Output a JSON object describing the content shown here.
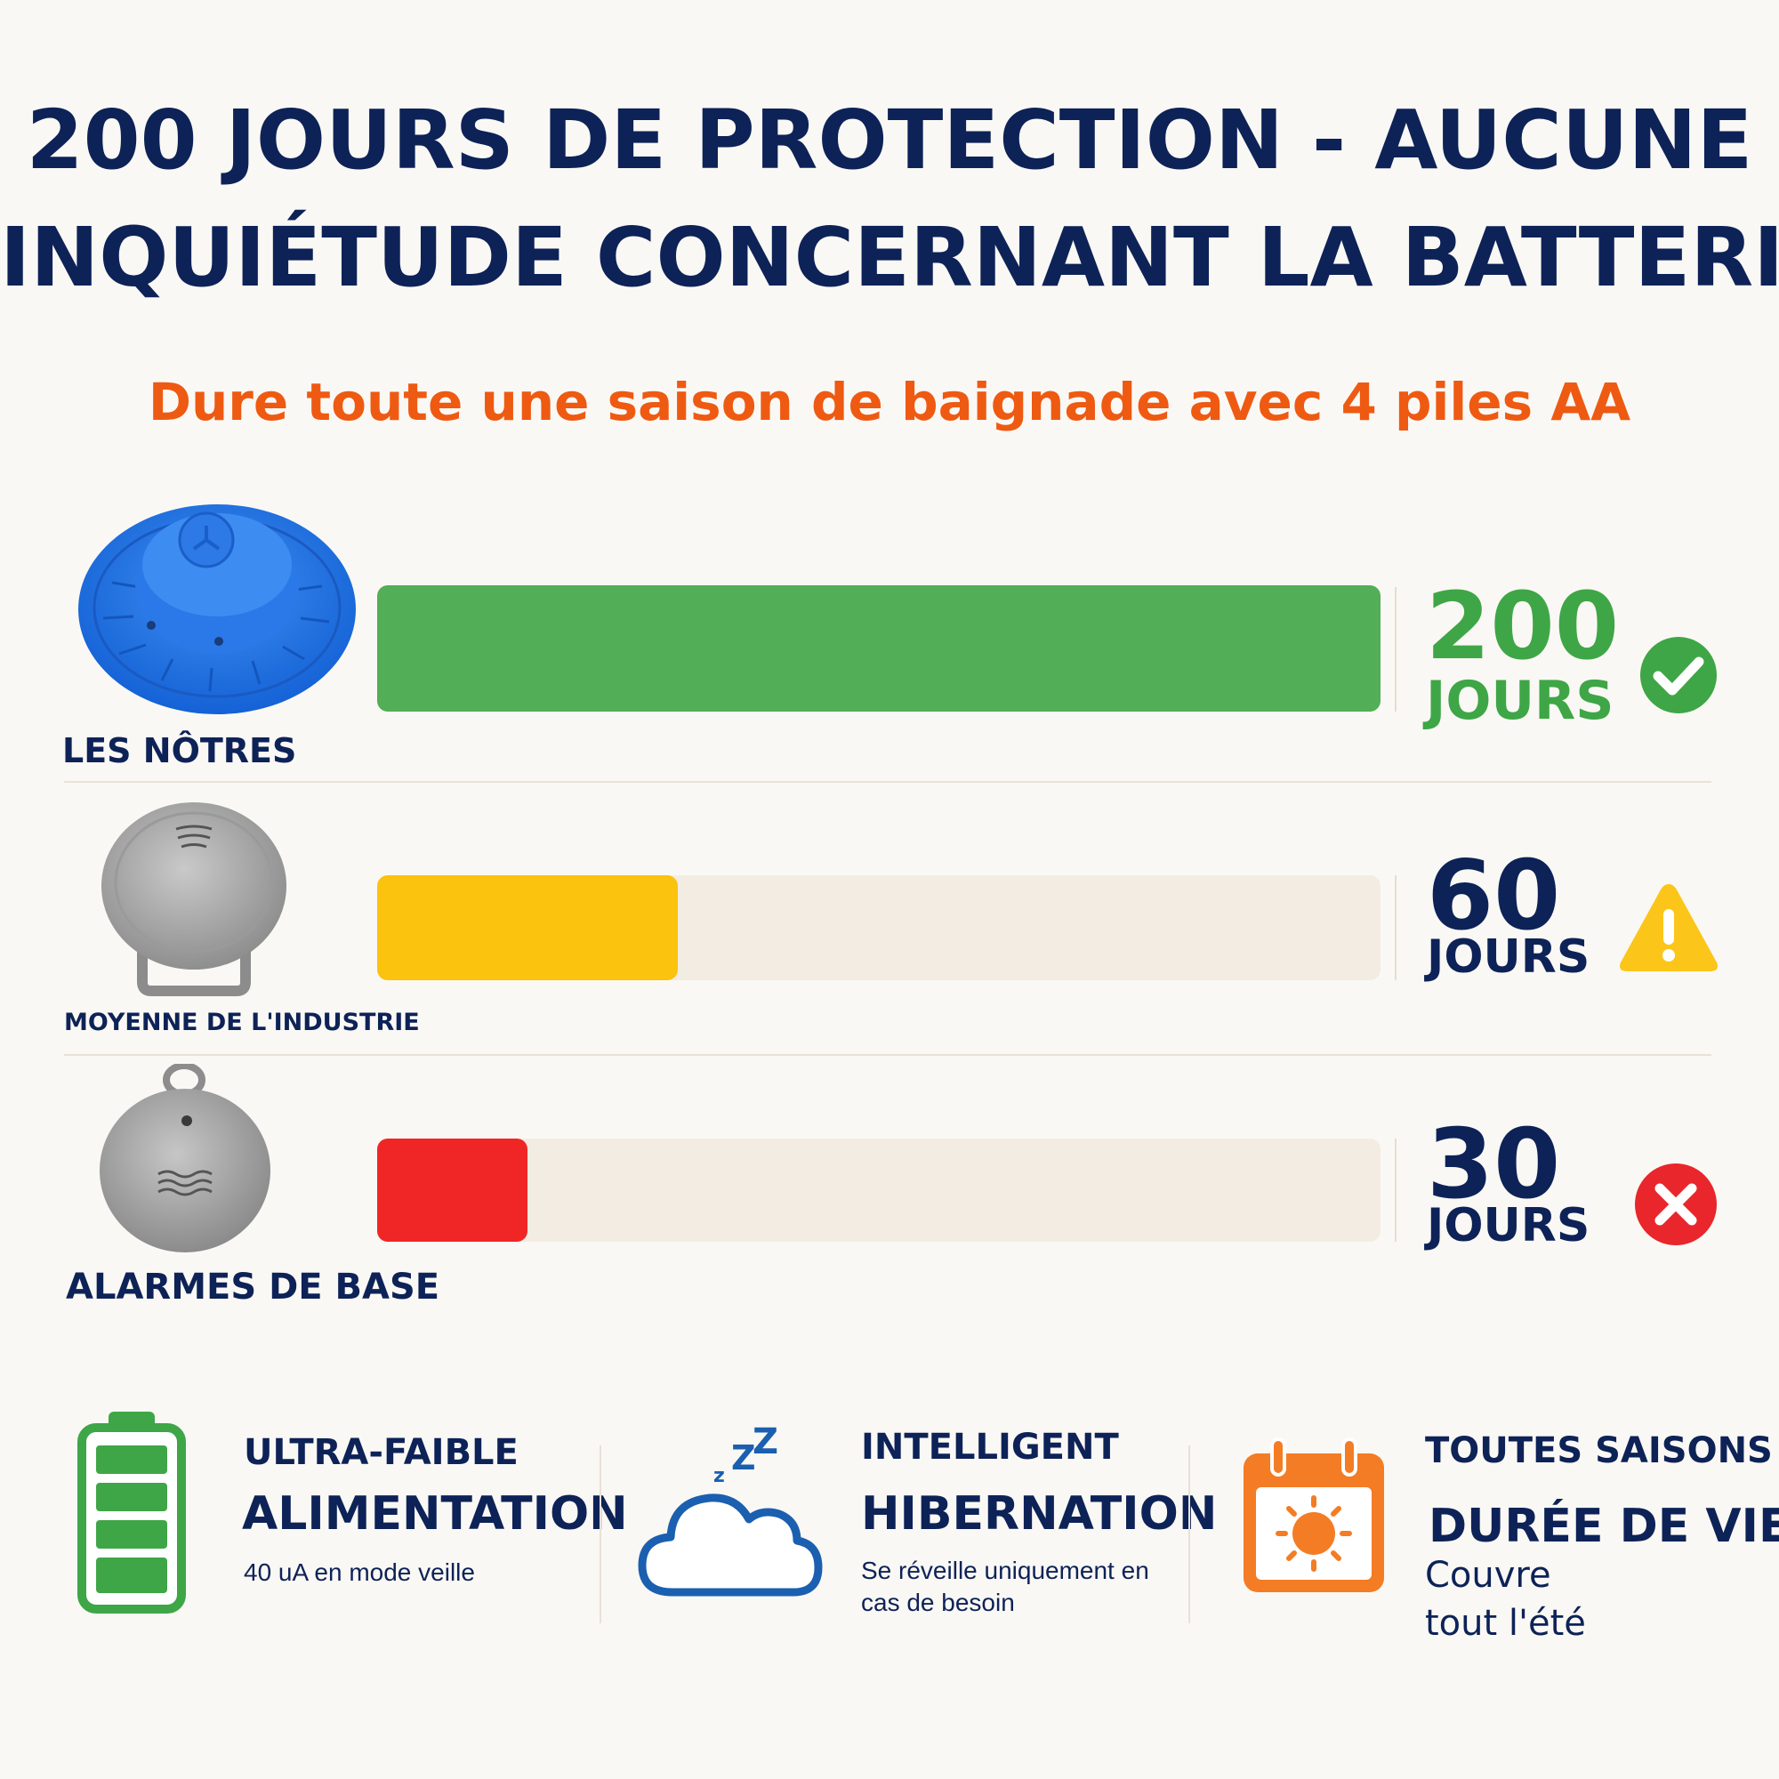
{
  "title": {
    "line1": "200 JOURS DE PROTECTION - AUCUNE",
    "line2": "INQUIÉTUDE CONCERNANT LA BATTERIE"
  },
  "subtitle": "Dure toute une saison de baignade avec 4 piles AA",
  "chart_data": {
    "type": "bar",
    "orientation": "horizontal",
    "categories": [
      "LES NÔTRES",
      "MOYENNE DE L'INDUSTRIE",
      "ALARMES DE BASE"
    ],
    "values": [
      200,
      60,
      30
    ],
    "unit": "JOURS",
    "xlim": [
      0,
      200
    ],
    "colors": [
      "#52ae57",
      "#fbc20e",
      "#f02626"
    ],
    "status_icons": [
      "check-circle-icon",
      "warning-triangle-icon",
      "cross-circle-icon"
    ],
    "value_label_colors": [
      "#3ea646",
      "#0d2257",
      "#0d2257"
    ],
    "grid": false,
    "legend": "none"
  },
  "features": [
    {
      "icon": "battery-icon",
      "top": "ULTRA-FAIBLE",
      "main": "ALIMENTATION",
      "sub": "40 uA en mode veille"
    },
    {
      "icon": "sleeping-cloud-icon",
      "top": "INTELLIGENT",
      "main": "HIBERNATION",
      "sub_line1": "Se réveille uniquement en",
      "sub_line2": "cas de besoin"
    },
    {
      "icon": "sun-calendar-icon",
      "top": "TOUTES SAISONS",
      "main": "DURÉE DE VIE",
      "sub_line1": "Couvre",
      "sub_line2": "tout l'été"
    }
  ]
}
